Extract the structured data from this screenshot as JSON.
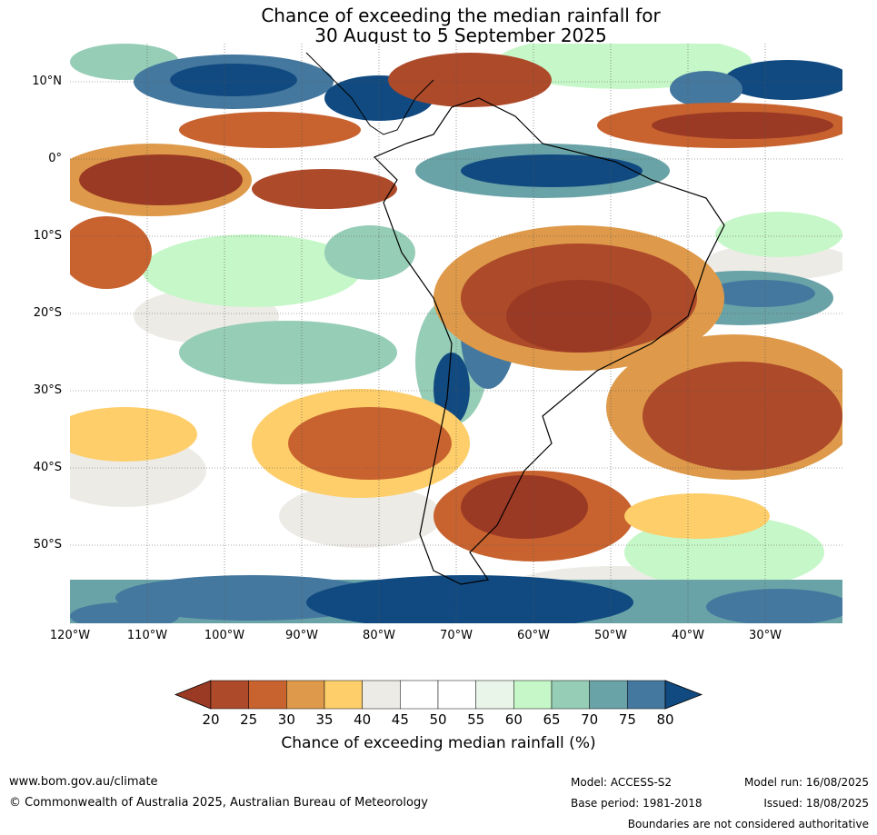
{
  "title_line1": "Chance of exceeding the median rainfall for",
  "title_line2": "30 August to 5 September 2025",
  "lat_labels": [
    "10°N",
    "0°",
    "10°S",
    "20°S",
    "30°S",
    "40°S",
    "50°S"
  ],
  "lon_labels": [
    "120°W",
    "110°W",
    "100°W",
    "90°W",
    "80°W",
    "70°W",
    "60°W",
    "50°W",
    "40°W",
    "30°W"
  ],
  "legend": {
    "ticks": [
      "20",
      "25",
      "30",
      "35",
      "40",
      "45",
      "50",
      "55",
      "60",
      "65",
      "70",
      "75",
      "80"
    ],
    "colors": [
      "#9b3a24",
      "#ad4a2a",
      "#c8632f",
      "#de9a4a",
      "#fdce6a",
      "#edebe6",
      "#ffffff",
      "#ffffff",
      "#e8f5e8",
      "#c6f7c8",
      "#96cdb7",
      "#6aa3a7",
      "#45789f",
      "#114a80"
    ],
    "title": "Chance of exceeding median rainfall (%)"
  },
  "footer": {
    "website": "www.bom.gov.au/climate",
    "copyright": "© Commonwealth of Australia 2025, Australian Bureau of Meteorology",
    "model": "Model: ACCESS-S2",
    "base_period": "Base period: 1981-2018",
    "model_run": "Model run: 16/08/2025",
    "issued": "Issued: 18/08/2025",
    "disclaimer": "Boundaries are not considered authoritative"
  }
}
